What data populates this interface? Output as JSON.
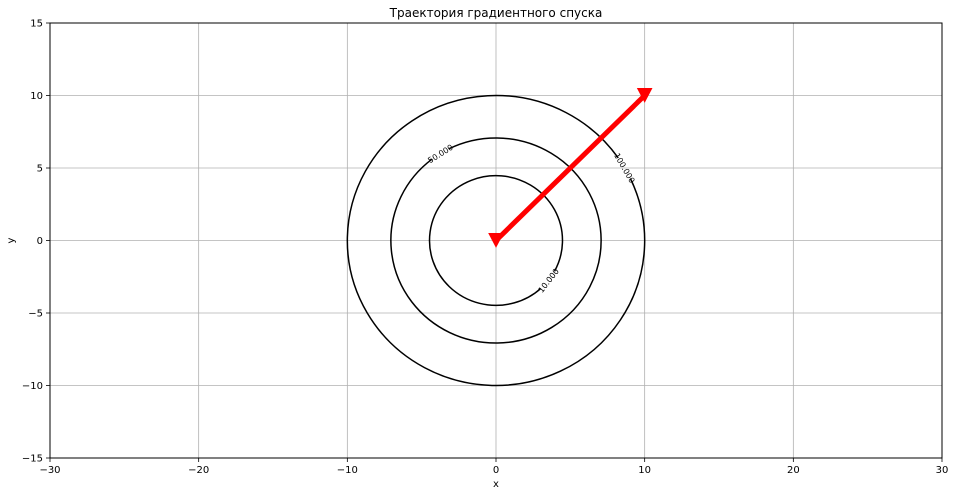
{
  "chart_data": {
    "type": "line",
    "title": "Траектория градиентного спуска",
    "xlabel": "x",
    "ylabel": "y",
    "xlim": [
      -30,
      30
    ],
    "ylim": [
      -15,
      15
    ],
    "xticks": [
      -30,
      -20,
      -10,
      0,
      10,
      20,
      30
    ],
    "yticks": [
      -15,
      -10,
      -5,
      0,
      5,
      10,
      15
    ],
    "xtick_labels": [
      "−30",
      "−20",
      "−10",
      "0",
      "10",
      "20",
      "30"
    ],
    "ytick_labels": [
      "−15",
      "−10",
      "−5",
      "0",
      "5",
      "10",
      "15"
    ],
    "grid": true,
    "contours": [
      {
        "level": 10,
        "radius": 4.472,
        "label": "10.000",
        "color": "#000000"
      },
      {
        "level": 50,
        "radius": 7.071,
        "label": "50.000",
        "color": "#000000"
      },
      {
        "level": 100,
        "radius": 10.0,
        "label": "100.000",
        "color": "#000000"
      }
    ],
    "series": [
      {
        "points": [
          {
            "x": 10,
            "y": 10
          },
          {
            "x": 0,
            "y": 0
          }
        ],
        "color": "#ff0000",
        "marker": "triangle-down"
      }
    ]
  }
}
